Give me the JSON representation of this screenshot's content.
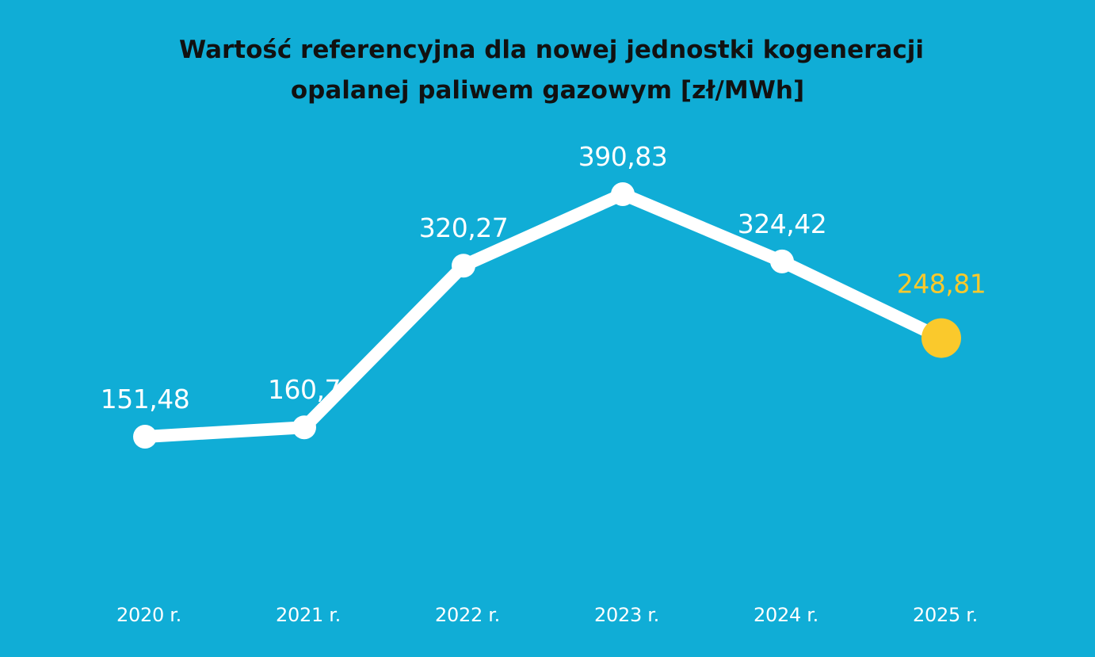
{
  "colors": {
    "background": "#10ADD6",
    "line": "#FFFFFF",
    "text": "#FFFFFF",
    "title_text": "#111111",
    "highlight": "#FAC92C"
  },
  "chart_data": {
    "type": "line",
    "title_lines": [
      "Wartość referencyjna dla nowej jednostki kogeneracji",
      "opalanej paliwem gazowym [zł/MWh]"
    ],
    "categories": [
      "2020 r.",
      "2021 r.",
      "2022 r.",
      "2023 r.",
      "2024 r.",
      "2025 r."
    ],
    "values": [
      151.48,
      160.7,
      320.27,
      390.83,
      324.42,
      248.81
    ],
    "data_labels": [
      "151,48",
      "160,7",
      "320,27",
      "390,83",
      "324,42",
      "248,81"
    ],
    "highlight_index": 5,
    "xlabel": "",
    "ylabel": "",
    "grid": false,
    "axes_visible": false
  }
}
